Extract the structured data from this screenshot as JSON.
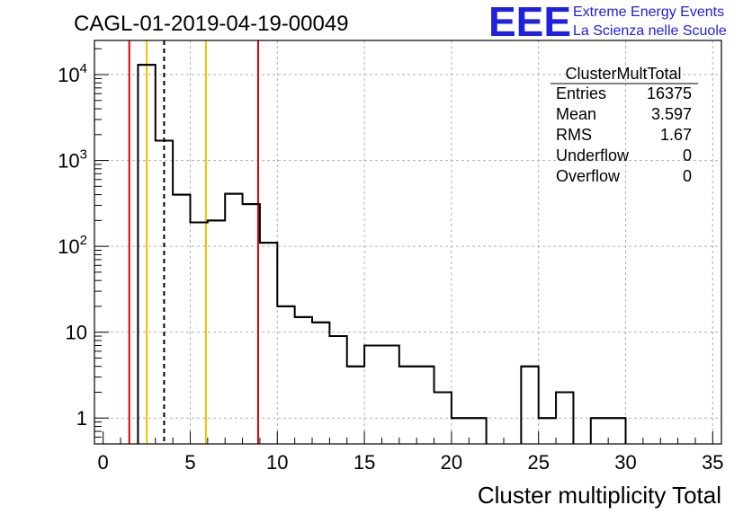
{
  "chart_data": {
    "type": "bar",
    "title": "CAGL-01-2019-04-19-00049",
    "xlabel": "Cluster multiplicity Total",
    "ylabel": "",
    "y_scale": "log",
    "xlim": [
      -0.5,
      35.5
    ],
    "ylim": [
      0.5,
      25000
    ],
    "bin_width": 1,
    "bins": [
      {
        "x": 2.5,
        "count": 13000
      },
      {
        "x": 3.5,
        "count": 1700
      },
      {
        "x": 4.5,
        "count": 400
      },
      {
        "x": 5.5,
        "count": 190
      },
      {
        "x": 6.5,
        "count": 200
      },
      {
        "x": 7.5,
        "count": 410
      },
      {
        "x": 8.5,
        "count": 310
      },
      {
        "x": 9.5,
        "count": 110
      },
      {
        "x": 10.5,
        "count": 20
      },
      {
        "x": 11.5,
        "count": 15
      },
      {
        "x": 12.5,
        "count": 13
      },
      {
        "x": 13.5,
        "count": 9
      },
      {
        "x": 14.5,
        "count": 4
      },
      {
        "x": 15.5,
        "count": 7
      },
      {
        "x": 16.5,
        "count": 7
      },
      {
        "x": 17.5,
        "count": 4
      },
      {
        "x": 18.5,
        "count": 4
      },
      {
        "x": 19.5,
        "count": 2
      },
      {
        "x": 20.5,
        "count": 1
      },
      {
        "x": 21.5,
        "count": 1
      },
      {
        "x": 24.5,
        "count": 4
      },
      {
        "x": 25.5,
        "count": 1
      },
      {
        "x": 26.5,
        "count": 2
      },
      {
        "x": 28.5,
        "count": 1
      },
      {
        "x": 29.5,
        "count": 1
      }
    ],
    "x_ticks": [
      0,
      5,
      10,
      15,
      20,
      25,
      30,
      35
    ],
    "x_minor_step": 1,
    "y_ticks": [
      {
        "value": 1,
        "label": "1",
        "sup": ""
      },
      {
        "value": 10,
        "label": "10",
        "sup": ""
      },
      {
        "value": 100,
        "label": "10",
        "sup": "2"
      },
      {
        "value": 1000,
        "label": "10",
        "sup": "3"
      },
      {
        "value": 10000,
        "label": "10",
        "sup": "4"
      }
    ],
    "grid": true,
    "markers": [
      {
        "x": 1.5,
        "color": "#e00000",
        "style": "solid"
      },
      {
        "x": 2.5,
        "color": "#f0c000",
        "style": "solid"
      },
      {
        "x": 3.5,
        "color": "#000000",
        "style": "dashed"
      },
      {
        "x": 5.9,
        "color": "#f0c000",
        "style": "solid"
      },
      {
        "x": 8.9,
        "color": "#e00000",
        "style": "solid"
      }
    ],
    "stats": {
      "name": "ClusterMultTotal",
      "rows": [
        {
          "label": "Entries",
          "value": "16375"
        },
        {
          "label": "Mean",
          "value": "3.597"
        },
        {
          "label": "RMS",
          "value": "1.67"
        },
        {
          "label": "Underflow",
          "value": "0"
        },
        {
          "label": "Overflow",
          "value": "0"
        }
      ]
    }
  },
  "logo": {
    "letters": "EEE",
    "line1": "Extreme Energy Events",
    "line2": "La Scienza nelle Scuole"
  },
  "colors": {
    "histogram": "#000000",
    "grid": "#b0b0b0",
    "logo": "#2020e0"
  }
}
